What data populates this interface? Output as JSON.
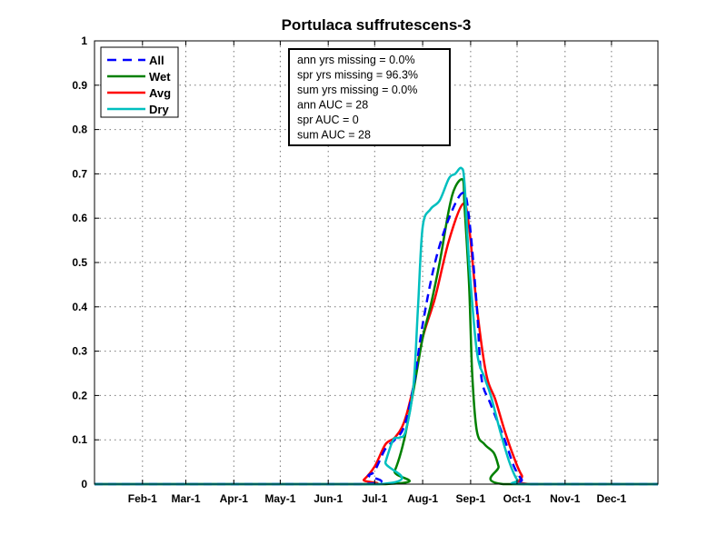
{
  "chart_data": {
    "type": "line",
    "title": "Portulaca suffrutescens-3",
    "xlabel": "",
    "ylabel": "",
    "xlim": [
      1,
      365
    ],
    "ylim": [
      0,
      1
    ],
    "grid": true,
    "x_ticks": [
      {
        "day": 32,
        "label": "Feb-1"
      },
      {
        "day": 60,
        "label": "Mar-1"
      },
      {
        "day": 91,
        "label": "Apr-1"
      },
      {
        "day": 121,
        "label": "May-1"
      },
      {
        "day": 152,
        "label": "Jun-1"
      },
      {
        "day": 182,
        "label": "Jul-1"
      },
      {
        "day": 213,
        "label": "Aug-1"
      },
      {
        "day": 244,
        "label": "Sep-1"
      },
      {
        "day": 274,
        "label": "Oct-1"
      },
      {
        "day": 305,
        "label": "Nov-1"
      },
      {
        "day": 335,
        "label": "Dec-1"
      }
    ],
    "y_ticks": [
      {
        "value": 0,
        "label": "0"
      },
      {
        "value": 0.1,
        "label": "0.1"
      },
      {
        "value": 0.2,
        "label": "0.2"
      },
      {
        "value": 0.3,
        "label": "0.3"
      },
      {
        "value": 0.4,
        "label": "0.4"
      },
      {
        "value": 0.5,
        "label": "0.5"
      },
      {
        "value": 0.6,
        "label": "0.6"
      },
      {
        "value": 0.7,
        "label": "0.7"
      },
      {
        "value": 0.8,
        "label": "0.8"
      },
      {
        "value": 0.9,
        "label": "0.9"
      },
      {
        "value": 1,
        "label": "1"
      }
    ],
    "legend": {
      "placement": "top-left"
    },
    "series": [
      {
        "name": "All",
        "color": "#0000ff",
        "style": "dashed",
        "points": [
          [
            1,
            0
          ],
          [
            172,
            0
          ],
          [
            178,
            0.02
          ],
          [
            182,
            0.03
          ],
          [
            189,
            0.08
          ],
          [
            195,
            0.1
          ],
          [
            201,
            0.13
          ],
          [
            207,
            0.22
          ],
          [
            213,
            0.36
          ],
          [
            221,
            0.5
          ],
          [
            230,
            0.6
          ],
          [
            239,
            0.657
          ],
          [
            243,
            0.6
          ],
          [
            248,
            0.4
          ],
          [
            251,
            0.24
          ],
          [
            257,
            0.18
          ],
          [
            266,
            0.1
          ],
          [
            272,
            0.04
          ],
          [
            277,
            0.01
          ],
          [
            280,
            0
          ],
          [
            365,
            0
          ]
        ]
      },
      {
        "name": "Wet",
        "color": "#008000",
        "style": "solid",
        "points": [
          [
            1,
            0
          ],
          [
            189,
            0
          ],
          [
            195,
            0.03
          ],
          [
            201,
            0.1
          ],
          [
            207,
            0.21
          ],
          [
            213,
            0.33
          ],
          [
            218,
            0.4
          ],
          [
            224,
            0.5
          ],
          [
            230,
            0.62
          ],
          [
            234,
            0.67
          ],
          [
            239,
            0.686
          ],
          [
            240,
            0.63
          ],
          [
            243,
            0.45
          ],
          [
            245,
            0.25
          ],
          [
            248,
            0.12
          ],
          [
            253,
            0.09
          ],
          [
            259,
            0.07
          ],
          [
            262,
            0.04
          ],
          [
            265,
            0
          ],
          [
            365,
            0
          ]
        ]
      },
      {
        "name": "Avg",
        "color": "#ff0000",
        "style": "solid",
        "points": [
          [
            1,
            0
          ],
          [
            170,
            0
          ],
          [
            175,
            0.01
          ],
          [
            182,
            0.04
          ],
          [
            189,
            0.09
          ],
          [
            195,
            0.105
          ],
          [
            201,
            0.14
          ],
          [
            207,
            0.22
          ],
          [
            213,
            0.33
          ],
          [
            221,
            0.42
          ],
          [
            230,
            0.55
          ],
          [
            239,
            0.632
          ],
          [
            243,
            0.58
          ],
          [
            248,
            0.4
          ],
          [
            254,
            0.25
          ],
          [
            260,
            0.19
          ],
          [
            266,
            0.12
          ],
          [
            272,
            0.06
          ],
          [
            277,
            0.02
          ],
          [
            283,
            0
          ],
          [
            365,
            0
          ]
        ]
      },
      {
        "name": "Dry",
        "color": "#00bfbf",
        "style": "solid",
        "points": [
          [
            1,
            0
          ],
          [
            185,
            0
          ],
          [
            189,
            0.05
          ],
          [
            194,
            0.1
          ],
          [
            198,
            0.105
          ],
          [
            202,
            0.12
          ],
          [
            207,
            0.22
          ],
          [
            210,
            0.4
          ],
          [
            213,
            0.58
          ],
          [
            218,
            0.62
          ],
          [
            224,
            0.64
          ],
          [
            230,
            0.69
          ],
          [
            234,
            0.7
          ],
          [
            238,
            0.713
          ],
          [
            240,
            0.68
          ],
          [
            243,
            0.5
          ],
          [
            248,
            0.3
          ],
          [
            253,
            0.24
          ],
          [
            257,
            0.2
          ],
          [
            263,
            0.12
          ],
          [
            269,
            0.05
          ],
          [
            274,
            0.01
          ],
          [
            278,
            0
          ],
          [
            365,
            0
          ]
        ]
      }
    ],
    "annotations": [
      "ann yrs missing = 0.0%",
      "spr yrs missing = 96.3%",
      "sum yrs missing = 0.0%",
      "ann AUC = 28",
      "spr AUC = 0",
      "sum AUC = 28"
    ]
  }
}
